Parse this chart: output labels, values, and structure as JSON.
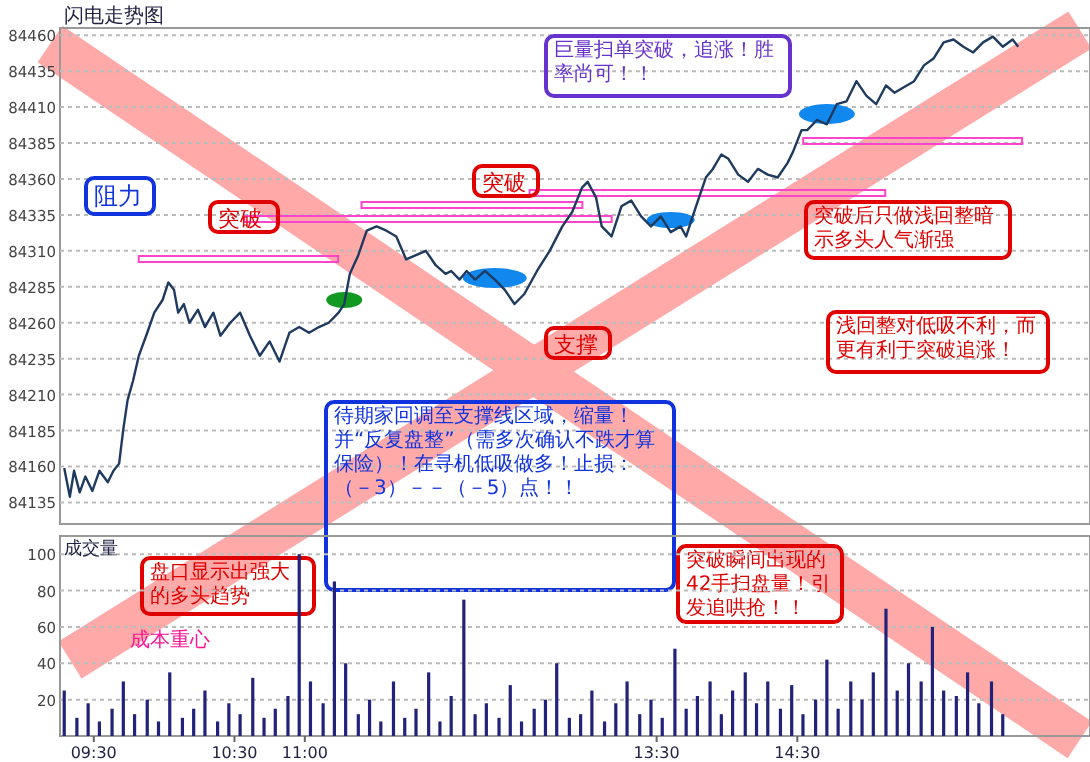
{
  "chart_data": [
    {
      "type": "line",
      "title": "闪电走势图",
      "tick_labels": "y",
      "grid": "y",
      "xlim": [
        9.26,
        16.58
      ],
      "ylim": [
        84120,
        84465
      ],
      "yticks": [
        84135,
        84160,
        84185,
        84210,
        84235,
        84260,
        84285,
        84310,
        84335,
        84360,
        84385,
        84410,
        84435,
        84460
      ],
      "series": [
        {
          "color": "#1f3a5f",
          "x": [
            9.29,
            9.33,
            9.36,
            9.4,
            9.44,
            9.49,
            9.54,
            9.6,
            9.64,
            9.68,
            9.71,
            9.74,
            9.78,
            9.82,
            9.88,
            9.93,
            9.99,
            10.03,
            10.07,
            10.1,
            10.14,
            10.18,
            10.24,
            10.29,
            10.35,
            10.4,
            10.47,
            10.54,
            10.61,
            10.68,
            10.75,
            10.82,
            10.89,
            10.96,
            11.03,
            11.1,
            11.17,
            11.24,
            11.28,
            11.32,
            11.38,
            11.44,
            11.51,
            11.58,
            11.65,
            11.72,
            11.79,
            11.86,
            11.93,
            12.0,
            12.04,
            12.1,
            12.15,
            12.21,
            12.28,
            12.35,
            12.42,
            12.49,
            12.56,
            12.65,
            12.74,
            12.83,
            12.9,
            12.97,
            13.01,
            13.07,
            13.11,
            13.18,
            13.25,
            13.32,
            13.39,
            13.46,
            13.53,
            13.6,
            13.67,
            13.71,
            13.78,
            13.85,
            13.9,
            13.96,
            14.01,
            14.08,
            14.15,
            14.22,
            14.29,
            14.36,
            14.43,
            14.47,
            14.53,
            14.57,
            14.64,
            14.71,
            14.78,
            14.85,
            14.92,
            14.99,
            15.06,
            15.13,
            15.19,
            15.26,
            15.33,
            15.4,
            15.47,
            15.54,
            15.61,
            15.68,
            15.75,
            15.82,
            15.89,
            15.96,
            16.03,
            16.07
          ],
          "values": [
            84159,
            84139,
            84157,
            84142,
            84153,
            84143,
            84157,
            84149,
            84157,
            84162,
            84186,
            84206,
            84220,
            84237,
            84253,
            84267,
            84276,
            84288,
            84283,
            84267,
            84273,
            84260,
            84269,
            84257,
            84267,
            84251,
            84260,
            84267,
            84251,
            84237,
            84247,
            84233,
            84253,
            84257,
            84253,
            84257,
            84260,
            84267,
            84273,
            84294,
            84307,
            84324,
            84327,
            84324,
            84320,
            84304,
            84307,
            84310,
            84300,
            84294,
            84296,
            84290,
            84296,
            84290,
            84296,
            84290,
            84283,
            84273,
            84280,
            84296,
            84310,
            84327,
            84337,
            84354,
            84358,
            84347,
            84327,
            84320,
            84341,
            84345,
            84334,
            84327,
            84334,
            84323,
            84327,
            84320,
            84341,
            84361,
            84367,
            84377,
            84374,
            84363,
            84358,
            84367,
            84363,
            84361,
            84371,
            84379,
            84394,
            84394,
            84401,
            84398,
            84412,
            84414,
            84428,
            84418,
            84412,
            84425,
            84420,
            84424,
            84428,
            84439,
            84444,
            84455,
            84457,
            84452,
            84448,
            84455,
            84459,
            84452,
            84457,
            84452
          ]
        }
      ],
      "annotations": [
        "阻力",
        "突破",
        "突破",
        "支撑",
        "巨量扫单突破，追涨！胜率尚可！！",
        "突破后只做浅回整暗示多头人气渐强",
        "浅回整对低吸不利，而更有利于突破追涨！",
        "盘口显示出强大的多头趋势",
        "成本重心",
        "待期家回调至支撑线区域，缩量！并“反复盘整”（需多次确认不跌才算保险）！在寻机低吸做多！止损：（－3）－－（－5）点！！",
        "突破瞬间出现的42手扫盘量！引发追哄抢！！"
      ]
    },
    {
      "type": "bar",
      "ylabel": "成交量",
      "grid": "y",
      "color": "#22227a",
      "xlim": [
        9.26,
        16.58
      ],
      "ylim": [
        0,
        110
      ],
      "yticks": [
        20,
        40,
        60,
        80,
        100
      ],
      "xticks": [
        {
          "value": 9.5,
          "label": "09:30"
        },
        {
          "value": 10.5,
          "label": "10:30"
        },
        {
          "value": 11,
          "label": "11:00"
        },
        {
          "value": 13.5,
          "label": "13:30"
        },
        {
          "value": 14.5,
          "label": "14:30"
        }
      ],
      "x": [
        9.29,
        9.38,
        9.46,
        9.54,
        9.63,
        9.71,
        9.79,
        9.88,
        9.96,
        10.04,
        10.13,
        10.21,
        10.29,
        10.38,
        10.46,
        10.54,
        10.63,
        10.71,
        10.79,
        10.88,
        10.96,
        11.04,
        11.13,
        11.21,
        11.29,
        11.38,
        11.46,
        11.54,
        11.63,
        11.71,
        11.79,
        11.88,
        11.96,
        12.04,
        12.13,
        12.21,
        12.29,
        12.38,
        12.46,
        12.54,
        12.63,
        12.71,
        12.79,
        12.88,
        12.96,
        13.04,
        13.13,
        13.21,
        13.29,
        13.38,
        13.46,
        13.54,
        13.63,
        13.71,
        13.79,
        13.88,
        13.96,
        14.04,
        14.13,
        14.21,
        14.29,
        14.38,
        14.46,
        14.54,
        14.63,
        14.71,
        14.79,
        14.88,
        14.96,
        15.04,
        15.13,
        15.21,
        15.29,
        15.38,
        15.46,
        15.54,
        15.63,
        15.71,
        15.79,
        15.88,
        15.96
      ],
      "values": [
        25,
        10,
        18,
        8,
        15,
        30,
        12,
        20,
        8,
        35,
        10,
        15,
        25,
        8,
        18,
        12,
        32,
        10,
        15,
        22,
        100,
        30,
        18,
        85,
        40,
        12,
        20,
        8,
        30,
        10,
        15,
        35,
        8,
        22,
        75,
        12,
        18,
        10,
        28,
        8,
        15,
        20,
        40,
        10,
        12,
        25,
        8,
        18,
        30,
        12,
        20,
        10,
        48,
        15,
        22,
        30,
        12,
        25,
        35,
        18,
        30,
        15,
        28,
        12,
        20,
        42,
        15,
        30,
        20,
        35,
        70,
        25,
        40,
        30,
        60,
        25,
        22,
        35,
        18,
        30,
        12
      ]
    }
  ]
}
